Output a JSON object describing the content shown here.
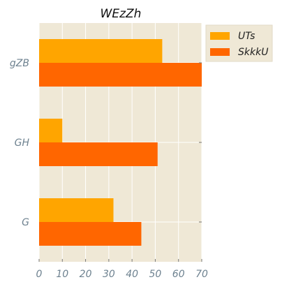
{
  "chart_data": {
    "type": "bar",
    "orientation": "horizontal",
    "title": "WEzZh",
    "xlabel": "",
    "ylabel": "",
    "xlim": [
      0,
      70
    ],
    "x_ticks": [
      0,
      10,
      20,
      30,
      40,
      50,
      60,
      70
    ],
    "categories": [
      "G",
      "GH",
      "gZB"
    ],
    "series": [
      {
        "name": "UTs",
        "values": [
          32,
          10,
          53
        ],
        "color": "#ffa500"
      },
      {
        "name": "SkkkU",
        "values": [
          44,
          51,
          70
        ],
        "color": "#ff6600"
      }
    ],
    "grid": true,
    "legend_position": "top-right-outside",
    "colors": {
      "plot_background": "#efe8d6",
      "grid": "#ffffff",
      "tick_label": "#6e8290",
      "title": "#111111"
    }
  }
}
